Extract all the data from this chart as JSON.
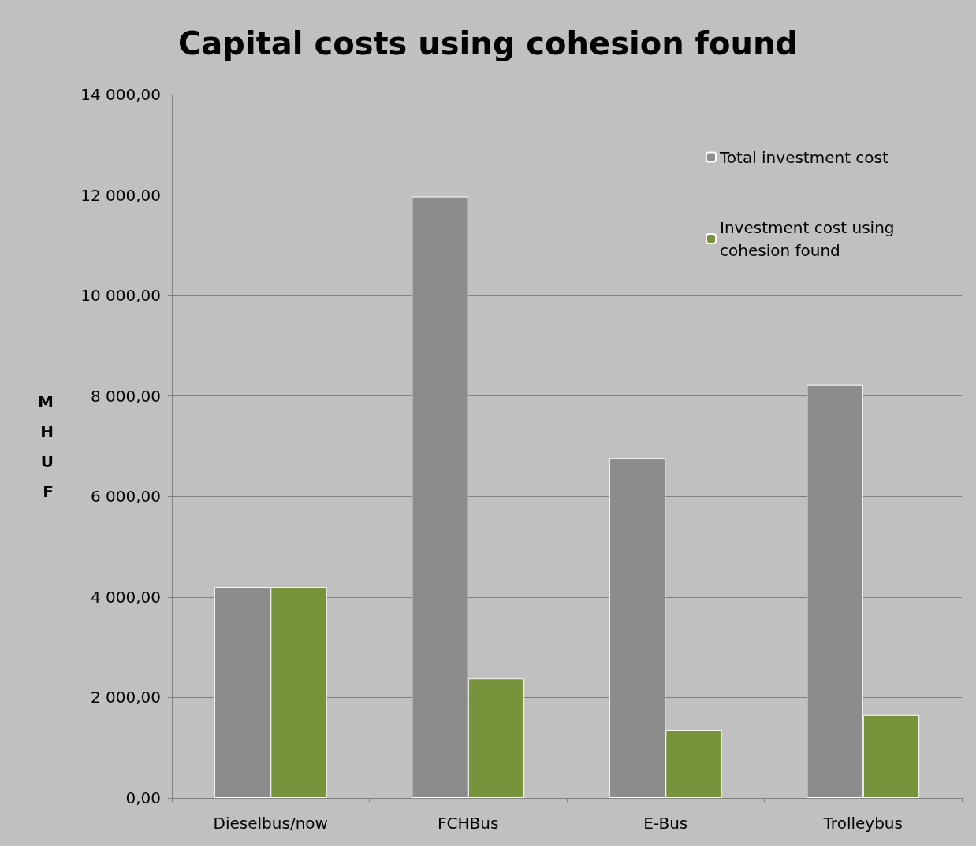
{
  "chart_data": {
    "type": "bar",
    "title": "Capital costs using cohesion found",
    "ylabel": "MHUF",
    "categories": [
      "Dieselbus/now",
      "FCHBus",
      "E-Bus",
      "Trolleybus"
    ],
    "series": [
      {
        "name": "Total investment cost",
        "color": "#8c8c8c",
        "values": [
          4200,
          11970,
          6760,
          8220
        ]
      },
      {
        "name": "Investment cost using cohesion found",
        "color": "#77933c",
        "values": [
          4200,
          2380,
          1350,
          1650
        ]
      }
    ],
    "ylim": [
      0,
      14000
    ],
    "yticks": [
      {
        "value": 0,
        "label": "0,00"
      },
      {
        "value": 2000,
        "label": "2 000,00"
      },
      {
        "value": 4000,
        "label": "4 000,00"
      },
      {
        "value": 6000,
        "label": "6 000,00"
      },
      {
        "value": 8000,
        "label": "8 000,00"
      },
      {
        "value": 10000,
        "label": "10 000,00"
      },
      {
        "value": 12000,
        "label": "12 000,00"
      },
      {
        "value": 14000,
        "label": "14 000,00"
      }
    ],
    "grid": "y",
    "legend": "top right"
  }
}
